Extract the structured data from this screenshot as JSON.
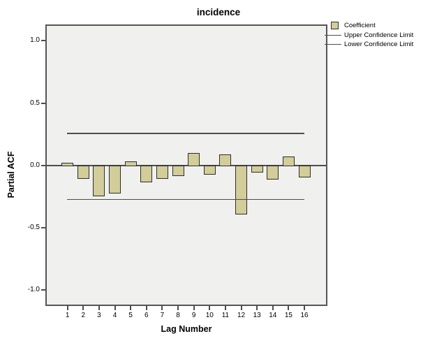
{
  "title": "incidence",
  "y_axis": {
    "label": "Partial ACF",
    "tick_labels": [
      "1.0",
      "0.5",
      "0.0",
      "-0.5",
      "-1.0"
    ],
    "tick_values": [
      1.0,
      0.5,
      0.0,
      -0.5,
      -1.0
    ]
  },
  "x_axis": {
    "label": "Lag Number",
    "tick_labels": [
      "1",
      "2",
      "3",
      "4",
      "5",
      "6",
      "7",
      "8",
      "9",
      "10",
      "11",
      "12",
      "13",
      "14",
      "15",
      "16"
    ]
  },
  "legend": {
    "coefficient_label": "Coefficient",
    "upper_label": "Upper Confidence Limit",
    "lower_label": "Lower Confidence Limit"
  },
  "colors": {
    "coefficient_fill": "#D2CD99",
    "coefficient_border": "#2E2E2E",
    "confidence_line": "#4D4D4D",
    "plot_background": "#F0F0EE",
    "frame_border": "#545454"
  },
  "chart_data": {
    "type": "bar",
    "title": "incidence",
    "xlabel": "Lag Number",
    "ylabel": "Partial ACF",
    "categories": [
      1,
      2,
      3,
      4,
      5,
      6,
      7,
      8,
      9,
      10,
      11,
      12,
      13,
      14,
      15,
      16
    ],
    "values": [
      0.02,
      -0.1,
      -0.24,
      -0.22,
      0.03,
      -0.13,
      -0.1,
      -0.08,
      0.1,
      -0.07,
      0.09,
      -0.39,
      -0.05,
      -0.11,
      0.07,
      -0.09
    ],
    "upper_confidence_limit": 0.26,
    "lower_confidence_limit": -0.27,
    "ylim": [
      -1.12,
      1.12
    ],
    "yticks": [
      1.0,
      0.5,
      0.0,
      -0.5,
      -1.0
    ],
    "grid": false,
    "legend_position": "top-right",
    "legend_entries": [
      "Coefficient",
      "Upper Confidence Limit",
      "Lower Confidence Limit"
    ]
  }
}
